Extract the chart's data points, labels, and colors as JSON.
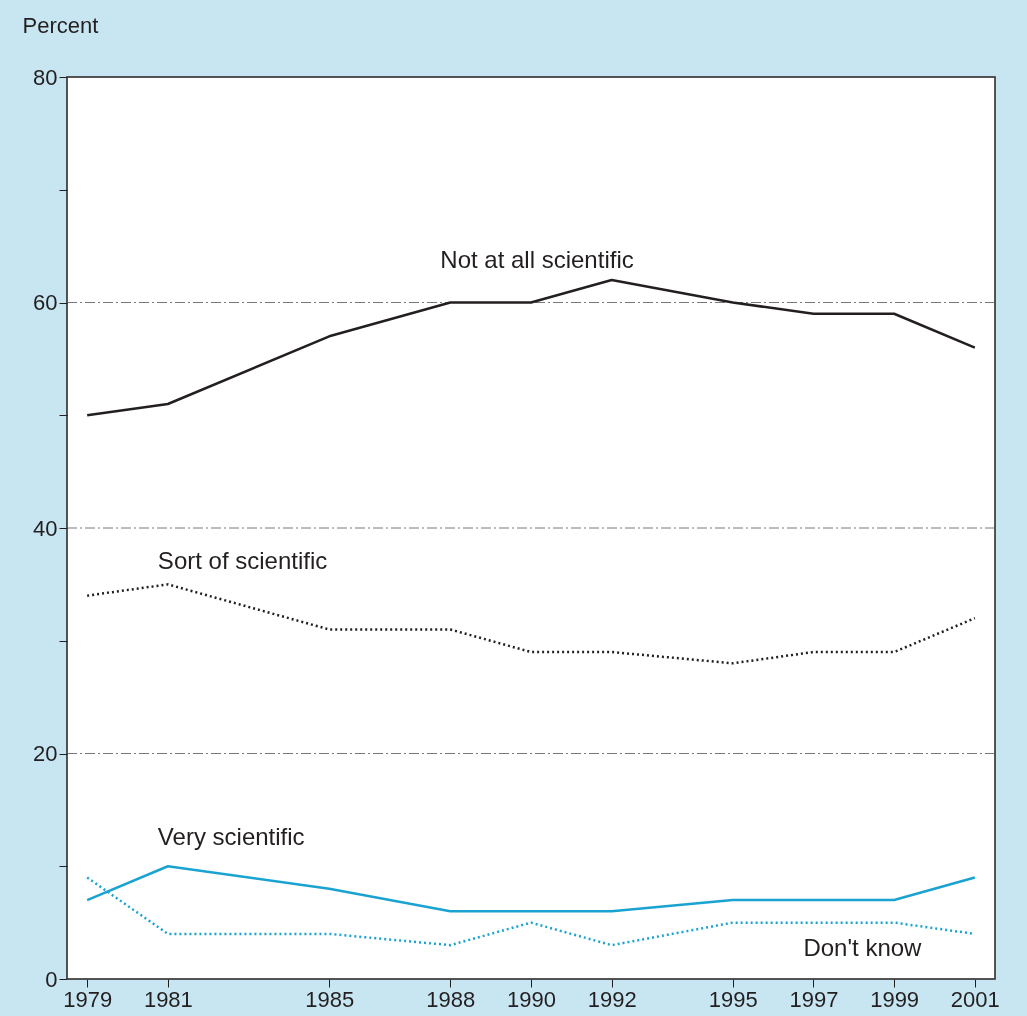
{
  "chart_data": {
    "type": "line",
    "ylabel": "Percent",
    "x": [
      1979,
      1981,
      1985,
      1988,
      1990,
      1992,
      1995,
      1997,
      1999,
      2001
    ],
    "xlim": [
      1978.5,
      2001.5
    ],
    "xticks": [
      1979,
      1981,
      1985,
      1988,
      1990,
      1992,
      1995,
      1997,
      1999,
      2001
    ],
    "ylim": [
      0,
      80
    ],
    "yticks": [
      0,
      {
        "value": 10,
        "label": null
      },
      20,
      {
        "value": 30,
        "label": null
      },
      40,
      {
        "value": 50,
        "label": null
      },
      60,
      {
        "value": 70,
        "label": null
      },
      80
    ],
    "grid": "y",
    "series": [
      {
        "name": "Not at all scientific",
        "color": "#231f20",
        "line_style": "solid",
        "values": [
          50,
          51,
          57,
          60,
          60,
          62,
          60,
          59,
          59,
          56
        ]
      },
      {
        "name": "Sort of scientific",
        "color": "#231f20",
        "line_style": "dotted",
        "values": [
          34,
          35,
          31,
          31,
          29,
          29,
          28,
          29,
          29,
          32
        ]
      },
      {
        "name": "Very scientific",
        "color": "#1aa3d1",
        "line_style": "solid",
        "values": [
          7,
          10,
          8,
          6,
          6,
          6,
          7,
          7,
          7,
          9
        ]
      },
      {
        "name": "Don't know",
        "color": "#1aa3d1",
        "line_style": "dotted",
        "values": [
          9,
          4,
          4,
          3,
          5,
          3,
          5,
          5,
          5,
          4
        ]
      }
    ]
  }
}
